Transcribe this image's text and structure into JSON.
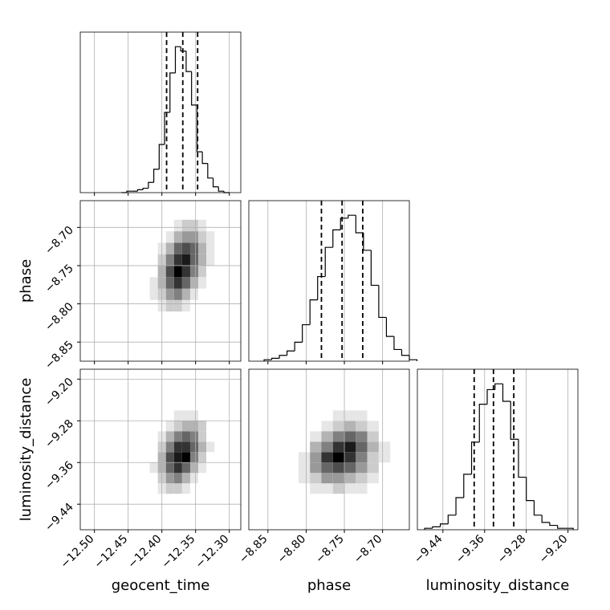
{
  "chart_data": {
    "type": "corner",
    "parameters": [
      {
        "label": "geocent_time",
        "lim": [
          -12.521,
          -12.283
        ],
        "ticks": [
          {
            "value": -12.5,
            "label": "−12.50"
          },
          {
            "value": -12.45,
            "label": "−12.45"
          },
          {
            "value": -12.4,
            "label": "−12.40"
          },
          {
            "value": -12.35,
            "label": "−12.35"
          },
          {
            "value": -12.3,
            "label": "−12.30"
          }
        ],
        "quantiles": [
          -12.393,
          -12.369,
          -12.347
        ],
        "hist": {
          "ylim": [
            0,
            110
          ],
          "bins": [
            -12.46,
            -12.452,
            -12.444,
            -12.436,
            -12.428,
            -12.42,
            -12.412,
            -12.404,
            -12.396,
            -12.388,
            -12.38,
            -12.372,
            -12.364,
            -12.356,
            -12.348,
            -12.34,
            -12.332,
            -12.324,
            -12.316,
            -12.308,
            -12.3
          ],
          "counts": [
            0,
            1,
            1,
            2,
            3,
            7,
            16,
            33,
            55,
            82,
            100,
            97,
            83,
            60,
            28,
            20,
            10,
            4,
            1,
            0
          ]
        }
      },
      {
        "label": "phase",
        "lim": [
          -8.875,
          -8.665
        ],
        "ticks": [
          {
            "value": -8.85,
            "label": "−8.85"
          },
          {
            "value": -8.8,
            "label": "−8.80"
          },
          {
            "value": -8.75,
            "label": "−8.75"
          },
          {
            "value": -8.7,
            "label": "−8.70"
          }
        ],
        "quantiles": [
          -8.78,
          -8.753,
          -8.726
        ],
        "hist": {
          "ylim": [
            0,
            110
          ],
          "bins": [
            -8.855,
            -8.845,
            -8.835,
            -8.825,
            -8.815,
            -8.805,
            -8.795,
            -8.785,
            -8.775,
            -8.765,
            -8.755,
            -8.745,
            -8.735,
            -8.725,
            -8.715,
            -8.705,
            -8.695,
            -8.685,
            -8.675,
            -8.665,
            -8.655
          ],
          "counts": [
            1,
            2,
            4,
            7,
            13,
            25,
            42,
            58,
            78,
            90,
            98,
            100,
            88,
            76,
            52,
            30,
            17,
            8,
            4,
            1
          ]
        }
      },
      {
        "label": "luminosity_distance",
        "lim": [
          -9.489,
          -9.181
        ],
        "ticks": [
          {
            "value": -9.44,
            "label": "−9.44"
          },
          {
            "value": -9.36,
            "label": "−9.36"
          },
          {
            "value": -9.28,
            "label": "−9.28"
          },
          {
            "value": -9.2,
            "label": "−9.20"
          }
        ],
        "quantiles": [
          -9.38,
          -9.343,
          -9.304
        ],
        "hist": {
          "ylim": [
            0,
            110
          ],
          "bins": [
            -9.475,
            -9.46,
            -9.445,
            -9.43,
            -9.415,
            -9.4,
            -9.385,
            -9.37,
            -9.355,
            -9.34,
            -9.325,
            -9.31,
            -9.295,
            -9.28,
            -9.265,
            -9.25,
            -9.235,
            -9.22,
            -9.205,
            -9.19
          ],
          "counts": [
            1,
            2,
            4,
            10,
            22,
            38,
            60,
            86,
            96,
            100,
            88,
            62,
            36,
            20,
            10,
            5,
            3,
            1,
            1
          ]
        }
      }
    ],
    "hist2d": [
      {
        "x_param": 0,
        "y_param": 1,
        "xbins": [
          -12.418,
          -12.406,
          -12.394,
          -12.382,
          -12.37,
          -12.358,
          -12.346,
          -12.334,
          -12.322
        ],
        "ybins": [
          -8.81,
          -8.795,
          -8.78,
          -8.765,
          -8.75,
          -8.735,
          -8.72,
          -8.705,
          -8.69
        ],
        "counts": [
          [
            0,
            1,
            2,
            2,
            1,
            0,
            0,
            0
          ],
          [
            1,
            2,
            4,
            5,
            3,
            1,
            0,
            0
          ],
          [
            1,
            3,
            6,
            8,
            6,
            3,
            1,
            0
          ],
          [
            0,
            3,
            7,
            10,
            8,
            5,
            2,
            0
          ],
          [
            0,
            2,
            5,
            8,
            9,
            6,
            3,
            1
          ],
          [
            0,
            1,
            3,
            6,
            7,
            6,
            3,
            1
          ],
          [
            0,
            0,
            1,
            3,
            4,
            4,
            2,
            1
          ],
          [
            0,
            0,
            0,
            1,
            2,
            2,
            1,
            0
          ]
        ]
      },
      {
        "x_param": 0,
        "y_param": 2,
        "xbins": [
          -12.418,
          -12.406,
          -12.394,
          -12.382,
          -12.37,
          -12.358,
          -12.346,
          -12.334,
          -12.322
        ],
        "ybins": [
          -9.42,
          -9.4,
          -9.38,
          -9.36,
          -9.34,
          -9.32,
          -9.3,
          -9.28,
          -9.26
        ],
        "counts": [
          [
            0,
            1,
            2,
            2,
            1,
            0,
            0,
            0
          ],
          [
            0,
            2,
            4,
            5,
            3,
            1,
            0,
            0
          ],
          [
            1,
            3,
            6,
            8,
            6,
            3,
            1,
            0
          ],
          [
            0,
            3,
            7,
            9,
            10,
            5,
            2,
            0
          ],
          [
            0,
            2,
            5,
            8,
            8,
            6,
            3,
            1
          ],
          [
            0,
            1,
            3,
            5,
            6,
            5,
            2,
            0
          ],
          [
            0,
            0,
            1,
            2,
            3,
            3,
            2,
            0
          ],
          [
            0,
            0,
            0,
            1,
            1,
            1,
            0,
            0
          ]
        ]
      },
      {
        "x_param": 1,
        "y_param": 2,
        "xbins": [
          -8.81,
          -8.795,
          -8.78,
          -8.765,
          -8.75,
          -8.735,
          -8.72,
          -8.705,
          -8.69
        ],
        "ybins": [
          -9.42,
          -9.4,
          -9.38,
          -9.36,
          -9.34,
          -9.32,
          -9.3,
          -9.28,
          -9.26
        ],
        "counts": [
          [
            0,
            1,
            1,
            2,
            1,
            1,
            0,
            0
          ],
          [
            1,
            2,
            4,
            4,
            3,
            2,
            1,
            0
          ],
          [
            1,
            4,
            6,
            7,
            6,
            4,
            2,
            0
          ],
          [
            1,
            4,
            8,
            10,
            8,
            5,
            2,
            1
          ],
          [
            0,
            3,
            5,
            8,
            9,
            6,
            3,
            1
          ],
          [
            0,
            1,
            3,
            5,
            6,
            5,
            2,
            0
          ],
          [
            0,
            0,
            1,
            2,
            3,
            2,
            1,
            0
          ],
          [
            0,
            0,
            0,
            1,
            1,
            1,
            0,
            0
          ]
        ]
      }
    ]
  }
}
